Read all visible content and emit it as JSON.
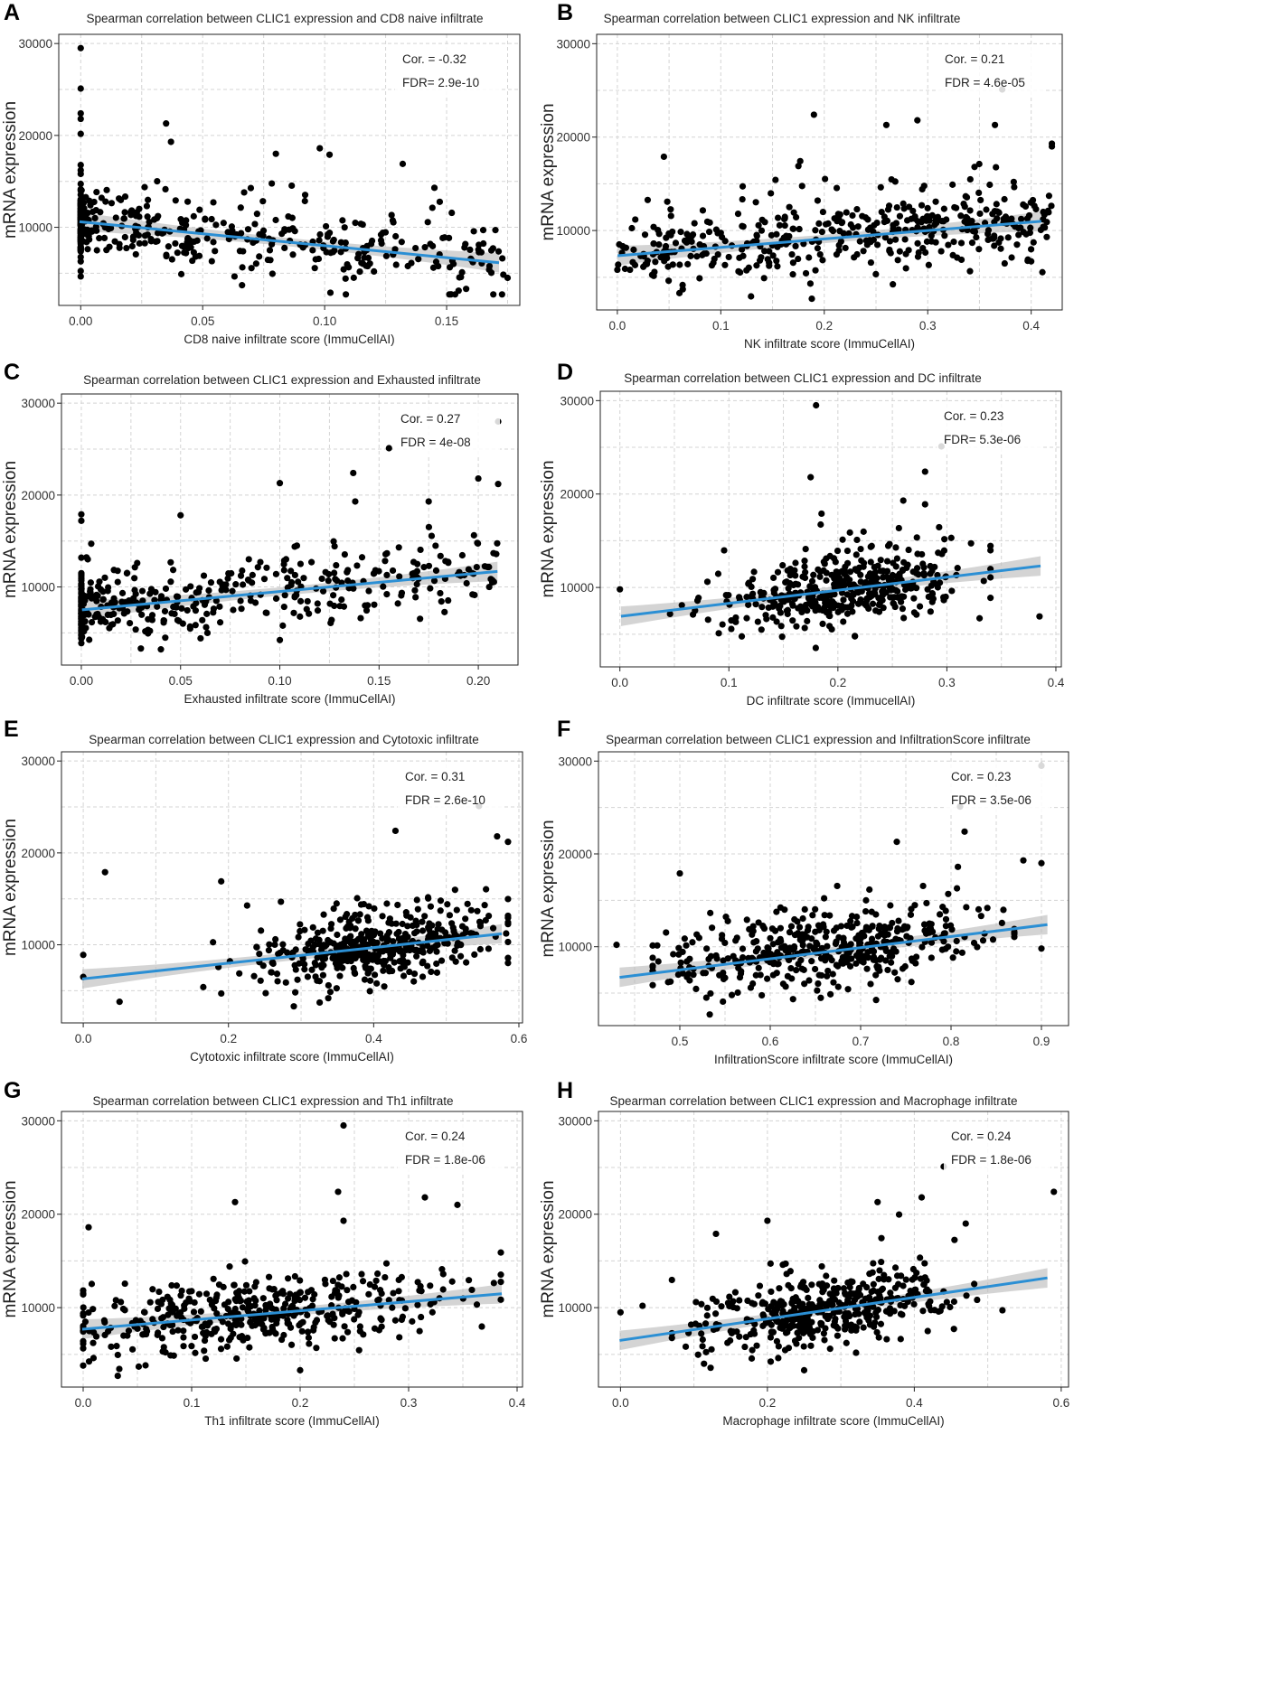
{
  "figure": {
    "ylabel": "mRNA expression",
    "colors": {
      "points": "#000000",
      "fit": "#2b8fd4",
      "band": "#bdbdbd",
      "grid": "#d4d4d4"
    }
  },
  "chart_data": [
    {
      "id": "A",
      "type": "scatter",
      "title": "Spearman correlation between CLIC1 expression and CD8 naive infiltrate",
      "xlabel": "CD8 naive infiltrate score (ImmuCellAI)",
      "ylabel": "mRNA expression",
      "xlim": [
        -0.009,
        0.18
      ],
      "ylim": [
        1500,
        31000
      ],
      "xticks": [
        0.0,
        0.05,
        0.1,
        0.15
      ],
      "xtick_labels": [
        "0.00",
        "0.05",
        "0.10",
        "0.15"
      ],
      "yticks": [
        10000,
        20000,
        30000
      ],
      "ytick_labels": [
        "10000",
        "20000",
        "30000"
      ],
      "cor_label": "Cor. = -0.32",
      "fdr_label": "FDR= 2.9e-10",
      "fit": {
        "slope": -26000,
        "intercept": 10600
      },
      "seed": 11,
      "x_dist": "clustered",
      "x_min": 0,
      "x_max": 0.175,
      "y_noise": 2500,
      "highlights": [
        [
          0.0,
          29500
        ],
        [
          0.0,
          25100
        ],
        [
          0.0,
          22400
        ],
        [
          0.0,
          21800
        ],
        [
          0.035,
          21300
        ],
        [
          0.037,
          19300
        ],
        [
          0.098,
          18600
        ],
        [
          0.102,
          17900
        ],
        [
          0.08,
          18000
        ],
        [
          0.132,
          16900
        ],
        [
          0.145,
          14300
        ],
        [
          0.175,
          4500
        ],
        [
          0.158,
          3300
        ],
        [
          0.17,
          9700
        ],
        [
          0.165,
          9700
        ]
      ]
    },
    {
      "id": "B",
      "type": "scatter",
      "title": "Spearman correlation between CLIC1 expression and NK infiltrate",
      "xlabel": "NK infiltrate score (ImmuCellAI)",
      "ylabel": "mRNA expression",
      "xlim": [
        -0.02,
        0.43
      ],
      "ylim": [
        1500,
        31000
      ],
      "xticks": [
        0.0,
        0.1,
        0.2,
        0.3,
        0.4
      ],
      "xtick_labels": [
        "0.0",
        "0.1",
        "0.2",
        "0.3",
        "0.4"
      ],
      "yticks": [
        10000,
        20000,
        30000
      ],
      "ytick_labels": [
        "10000",
        "20000",
        "30000"
      ],
      "cor_label": "Cor. = 0.21",
      "fdr_label": "FDR = 4.6e-05",
      "fit": {
        "slope": 9000,
        "intercept": 7300
      },
      "seed": 23,
      "x_dist": "uniform",
      "x_min": 0.0,
      "x_max": 0.42,
      "y_noise": 2500,
      "highlights": [
        [
          0.372,
          25100
        ],
        [
          0.19,
          22400
        ],
        [
          0.29,
          21800
        ],
        [
          0.26,
          21300
        ],
        [
          0.365,
          21300
        ],
        [
          0.42,
          19300
        ],
        [
          0.42,
          19000
        ],
        [
          0.045,
          17900
        ],
        [
          0.175,
          16900
        ],
        [
          0.4,
          6700
        ],
        [
          0.06,
          3300
        ],
        [
          0.0,
          5800
        ]
      ]
    },
    {
      "id": "C",
      "type": "scatter",
      "title": "Spearman correlation between CLIC1 expression and Exhausted infiltrate",
      "xlabel": "Exhausted infiltrate score (ImmuCellAI)",
      "ylabel": "mRNA expression",
      "xlim": [
        -0.01,
        0.22
      ],
      "ylim": [
        1500,
        31000
      ],
      "xticks": [
        0.0,
        0.05,
        0.1,
        0.15,
        0.2
      ],
      "xtick_labels": [
        "0.00",
        "0.05",
        "0.10",
        "0.15",
        "0.20"
      ],
      "yticks": [
        10000,
        20000,
        30000
      ],
      "ytick_labels": [
        "10000",
        "20000",
        "30000"
      ],
      "cor_label": "Cor. = 0.27",
      "fdr_label": "FDR = 4e-08",
      "fit": {
        "slope": 20000,
        "intercept": 7500
      },
      "seed": 37,
      "x_dist": "clustered",
      "x_min": 0,
      "x_max": 0.21,
      "y_noise": 2400,
      "highlights": [
        [
          0.21,
          28000
        ],
        [
          0.155,
          25100
        ],
        [
          0.137,
          22400
        ],
        [
          0.1,
          21300
        ],
        [
          0.2,
          21800
        ],
        [
          0.21,
          21200
        ],
        [
          0.0,
          17900
        ],
        [
          0.0,
          17200
        ],
        [
          0.005,
          14700
        ],
        [
          0.05,
          17800
        ],
        [
          0.138,
          19300
        ],
        [
          0.175,
          19300
        ],
        [
          0.03,
          3300
        ]
      ]
    },
    {
      "id": "D",
      "type": "scatter",
      "title": "Spearman correlation between CLIC1 expression and DC infiltrate",
      "xlabel": "DC infiltrate score (ImmucellAI)",
      "ylabel": "mRNA expression",
      "xlim": [
        -0.018,
        0.405
      ],
      "ylim": [
        1500,
        31000
      ],
      "xticks": [
        0.0,
        0.1,
        0.2,
        0.3,
        0.4
      ],
      "xtick_labels": [
        "0.0",
        "0.1",
        "0.2",
        "0.3",
        "0.4"
      ],
      "yticks": [
        10000,
        20000,
        30000
      ],
      "ytick_labels": [
        "10000",
        "20000",
        "30000"
      ],
      "cor_label": "Cor. = 0.23",
      "fdr_label": "FDR= 5.3e-06",
      "fit": {
        "slope": 14000,
        "intercept": 6900
      },
      "seed": 41,
      "x_dist": "normal",
      "x_center": 0.2,
      "x_spread": 0.055,
      "x_min": 0.04,
      "x_max": 0.34,
      "y_noise": 2400,
      "highlights": [
        [
          0.18,
          29500
        ],
        [
          0.295,
          25100
        ],
        [
          0.28,
          22400
        ],
        [
          0.175,
          21800
        ],
        [
          0.26,
          19300
        ],
        [
          0.0,
          9800
        ],
        [
          0.385,
          6900
        ],
        [
          0.33,
          6700
        ],
        [
          0.185,
          17900
        ],
        [
          0.28,
          18900
        ]
      ]
    },
    {
      "id": "E",
      "type": "scatter",
      "title": "Spearman correlation between CLIC1 expression and Cytotoxic infiltrate",
      "xlabel": "Cytotoxic infiltrate score (ImmuCellAI)",
      "ylabel": "mRNA expression",
      "xlim": [
        -0.03,
        0.605
      ],
      "ylim": [
        1500,
        31000
      ],
      "xticks": [
        0.0,
        0.2,
        0.4,
        0.6
      ],
      "xtick_labels": [
        "0.0",
        "0.2",
        "0.4",
        "0.6"
      ],
      "yticks": [
        10000,
        20000,
        30000
      ],
      "ytick_labels": [
        "10000",
        "20000",
        "30000"
      ],
      "cor_label": "Cor. = 0.31",
      "fdr_label": "FDR = 2.6e-10",
      "fit": {
        "slope": 8500,
        "intercept": 6300
      },
      "seed": 53,
      "x_dist": "normal",
      "x_center": 0.4,
      "x_spread": 0.09,
      "x_min": 0.05,
      "x_max": 0.585,
      "y_noise": 2500,
      "highlights": [
        [
          0.545,
          25100
        ],
        [
          0.43,
          22400
        ],
        [
          0.57,
          21800
        ],
        [
          0.585,
          21200
        ],
        [
          0.03,
          17900
        ],
        [
          0.19,
          16900
        ],
        [
          0.0,
          8900
        ],
        [
          0.0,
          6500
        ],
        [
          0.05,
          3800
        ],
        [
          0.29,
          3300
        ]
      ]
    },
    {
      "id": "F",
      "type": "scatter",
      "title": "Spearman correlation between CLIC1 expression and InfiltrationScore infiltrate",
      "xlabel": "InfiltrationScore infiltrate score (ImmuCellAI)",
      "ylabel": "mRNA expression",
      "xlim": [
        0.41,
        0.93
      ],
      "ylim": [
        1500,
        31000
      ],
      "xticks": [
        0.5,
        0.6,
        0.7,
        0.8,
        0.9
      ],
      "xtick_labels": [
        "0.5",
        "0.6",
        "0.7",
        "0.8",
        "0.9"
      ],
      "yticks": [
        10000,
        20000,
        30000
      ],
      "ytick_labels": [
        "10000",
        "20000",
        "30000"
      ],
      "cor_label": "Cor. = 0.23",
      "fdr_label": "FDR = 3.5e-06",
      "fit": {
        "slope": 12000,
        "intercept": 1500
      },
      "seed": 67,
      "x_dist": "normal",
      "x_center": 0.66,
      "x_spread": 0.085,
      "x_min": 0.47,
      "x_max": 0.87,
      "y_noise": 2400,
      "highlights": [
        [
          0.9,
          29500
        ],
        [
          0.81,
          25100
        ],
        [
          0.815,
          22400
        ],
        [
          0.74,
          21300
        ],
        [
          0.9,
          19000
        ],
        [
          0.88,
          19300
        ],
        [
          0.43,
          10200
        ],
        [
          0.9,
          9800
        ],
        [
          0.5,
          17900
        ]
      ]
    },
    {
      "id": "G",
      "type": "scatter",
      "title": "Spearman correlation between CLIC1 expression and Th1 infiltrate",
      "xlabel": "Th1 infiltrate score (ImmuCellAI)",
      "ylabel": "mRNA expression",
      "xlim": [
        -0.02,
        0.405
      ],
      "ylim": [
        1500,
        31000
      ],
      "xticks": [
        0.0,
        0.1,
        0.2,
        0.3,
        0.4
      ],
      "xtick_labels": [
        "0.0",
        "0.1",
        "0.2",
        "0.3",
        "0.4"
      ],
      "yticks": [
        10000,
        20000,
        30000
      ],
      "ytick_labels": [
        "10000",
        "20000",
        "30000"
      ],
      "cor_label": "Cor. = 0.24",
      "fdr_label": "FDR = 1.8e-06",
      "fit": {
        "slope": 9800,
        "intercept": 7700
      },
      "seed": 79,
      "x_dist": "normal",
      "x_center": 0.16,
      "x_spread": 0.085,
      "x_min": 0.0,
      "x_max": 0.385,
      "y_noise": 2400,
      "highlights": [
        [
          0.24,
          29500
        ],
        [
          0.235,
          22400
        ],
        [
          0.14,
          21300
        ],
        [
          0.315,
          21800
        ],
        [
          0.345,
          21000
        ],
        [
          0.005,
          18600
        ],
        [
          0.24,
          19300
        ],
        [
          0.385,
          15900
        ],
        [
          0.0,
          3800
        ],
        [
          0.2,
          3300
        ]
      ]
    },
    {
      "id": "H",
      "type": "scatter",
      "title": "Spearman correlation between CLIC1 expression and Macrophage infiltrate",
      "xlabel": "Macrophage infiltrate score (ImmuCellAI)",
      "ylabel": "mRNA expression",
      "xlim": [
        -0.03,
        0.61
      ],
      "ylim": [
        1500,
        31000
      ],
      "xticks": [
        0.0,
        0.2,
        0.4,
        0.6
      ],
      "xtick_labels": [
        "0.0",
        "0.2",
        "0.4",
        "0.6"
      ],
      "yticks": [
        10000,
        20000,
        30000
      ],
      "ytick_labels": [
        "10000",
        "20000",
        "30000"
      ],
      "cor_label": "Cor. = 0.24",
      "fdr_label": "FDR = 1.8e-06",
      "fit": {
        "slope": 11500,
        "intercept": 6500
      },
      "seed": 97,
      "x_dist": "normal",
      "x_center": 0.27,
      "x_spread": 0.09,
      "x_min": 0.07,
      "x_max": 0.52,
      "y_noise": 2400,
      "highlights": [
        [
          0.44,
          25100
        ],
        [
          0.59,
          22400
        ],
        [
          0.41,
          21800
        ],
        [
          0.35,
          21300
        ],
        [
          0.47,
          19000
        ],
        [
          0.0,
          9500
        ],
        [
          0.03,
          10200
        ],
        [
          0.13,
          17900
        ],
        [
          0.2,
          19300
        ],
        [
          0.25,
          3300
        ]
      ]
    }
  ]
}
